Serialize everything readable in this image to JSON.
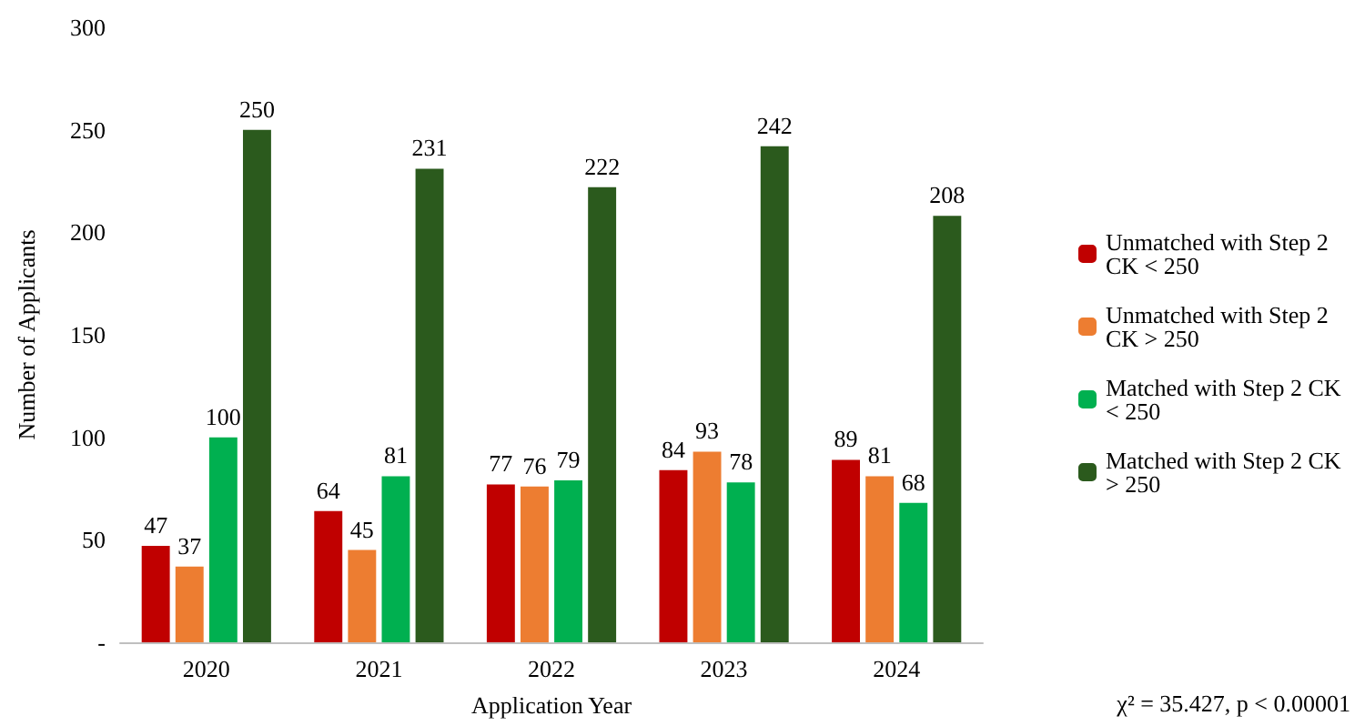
{
  "chart_data": {
    "type": "bar",
    "xlabel": "Application Year",
    "ylabel": "Number of Applicants",
    "categories": [
      "2020",
      "2021",
      "2022",
      "2023",
      "2024"
    ],
    "series": [
      {
        "name": "Unmatched with Step 2 CK < 250",
        "color": "#c00000",
        "values": [
          47,
          64,
          77,
          84,
          89
        ]
      },
      {
        "name": "Unmatched with Step 2 CK > 250",
        "color": "#ed7d31",
        "values": [
          37,
          45,
          76,
          93,
          81
        ]
      },
      {
        "name": "Matched with Step 2 CK < 250",
        "color": "#00b050",
        "values": [
          100,
          81,
          79,
          78,
          68
        ]
      },
      {
        "name": "Matched with Step 2 CK > 250",
        "color": "#2b5a1d",
        "values": [
          250,
          231,
          222,
          242,
          208
        ]
      }
    ],
    "ylim": [
      0,
      300
    ],
    "yticks": [
      {
        "value": 0,
        "label": "-"
      },
      50,
      100,
      150,
      200,
      250,
      300
    ],
    "data_labels": true,
    "grid": false,
    "legend": "right",
    "annotations": [
      "χ² = 35.427, p < 0.00001"
    ]
  }
}
